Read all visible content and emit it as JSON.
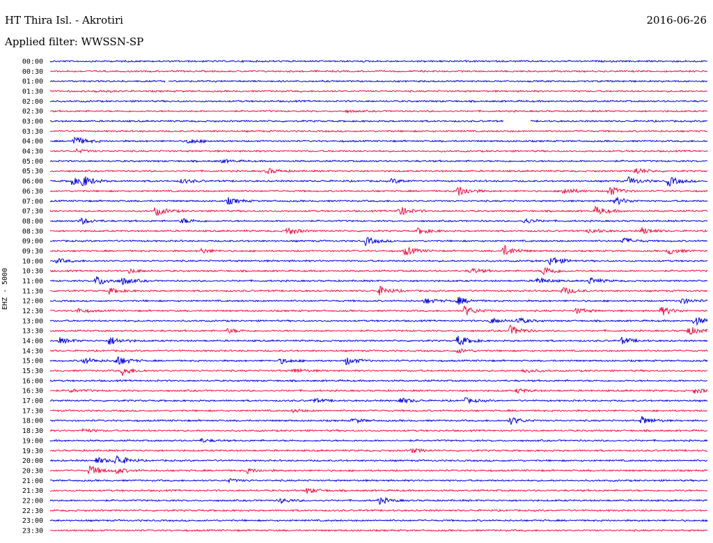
{
  "header": {
    "station": "HT Thira Isl. - Akrotiri",
    "date": "2016-06-26",
    "filter": "Applied filter: WWSSN-SP"
  },
  "chart_data": {
    "type": "helicorder",
    "title": "HT Thira Isl. - Akrotiri",
    "date": "2016-06-26",
    "filter": "WWSSN-SP",
    "ylabel": "EHZ - 5000",
    "row_interval_minutes": 30,
    "colors": [
      "#0000dd",
      "#ee1144"
    ],
    "rows": [
      {
        "time": "00:00",
        "events": []
      },
      {
        "time": "00:30",
        "events": []
      },
      {
        "time": "01:00",
        "events": [],
        "gap": [
          0.175,
          0.18
        ]
      },
      {
        "time": "01:30",
        "events": [
          [
            0.07,
            0.2
          ]
        ]
      },
      {
        "time": "02:00",
        "events": []
      },
      {
        "time": "02:30",
        "events": [
          [
            0.45,
            0.15
          ]
        ]
      },
      {
        "time": "03:00",
        "events": [],
        "gap": [
          0.69,
          0.73
        ]
      },
      {
        "time": "03:30",
        "events": []
      },
      {
        "time": "04:00",
        "events": [
          [
            0.035,
            0.9
          ],
          [
            0.21,
            0.5
          ]
        ]
      },
      {
        "time": "04:30",
        "events": [
          [
            0.04,
            0.3
          ]
        ]
      },
      {
        "time": "05:00",
        "events": [
          [
            0.26,
            0.3
          ]
        ]
      },
      {
        "time": "05:30",
        "events": [
          [
            0.33,
            0.5
          ],
          [
            0.89,
            0.6
          ]
        ]
      },
      {
        "time": "06:00",
        "events": [
          [
            0.03,
            0.8
          ],
          [
            0.047,
            1.0
          ],
          [
            0.2,
            0.4
          ],
          [
            0.52,
            0.4
          ],
          [
            0.88,
            0.7
          ],
          [
            0.94,
            0.9
          ]
        ]
      },
      {
        "time": "06:30",
        "events": [
          [
            0.62,
            1.0
          ],
          [
            0.78,
            0.7
          ],
          [
            0.85,
            0.9
          ]
        ]
      },
      {
        "time": "07:00",
        "events": [
          [
            0.27,
            0.6
          ],
          [
            0.86,
            0.7
          ]
        ]
      },
      {
        "time": "07:30",
        "events": [
          [
            0.16,
            0.8
          ],
          [
            0.53,
            0.9
          ],
          [
            0.83,
            0.8
          ]
        ]
      },
      {
        "time": "08:00",
        "events": [
          [
            0.045,
            0.6
          ],
          [
            0.2,
            0.5
          ],
          [
            0.72,
            0.5
          ]
        ]
      },
      {
        "time": "08:30",
        "events": [
          [
            0.36,
            0.7
          ],
          [
            0.56,
            0.6
          ],
          [
            0.82,
            0.5
          ],
          [
            0.9,
            0.6
          ]
        ]
      },
      {
        "time": "09:00",
        "events": [
          [
            0.48,
            0.7
          ],
          [
            0.87,
            0.6
          ]
        ]
      },
      {
        "time": "09:30",
        "events": [
          [
            0.23,
            0.4
          ],
          [
            0.54,
            0.8
          ],
          [
            0.69,
            1.0
          ],
          [
            0.94,
            0.6
          ]
        ]
      },
      {
        "time": "10:00",
        "events": [
          [
            0.01,
            0.4
          ],
          [
            0.76,
            0.9
          ]
        ]
      },
      {
        "time": "10:30",
        "events": [
          [
            0.12,
            0.4
          ],
          [
            0.64,
            0.5
          ],
          [
            0.75,
            0.9
          ]
        ]
      },
      {
        "time": "11:00",
        "events": [
          [
            0.07,
            0.9
          ],
          [
            0.11,
            0.6
          ],
          [
            0.74,
            0.6
          ],
          [
            0.82,
            0.6
          ]
        ]
      },
      {
        "time": "11:30",
        "events": [
          [
            0.09,
            0.5
          ],
          [
            0.5,
            0.8
          ],
          [
            0.78,
            0.7
          ]
        ]
      },
      {
        "time": "12:00",
        "events": [
          [
            0.57,
            0.5
          ],
          [
            0.62,
            0.7
          ],
          [
            0.96,
            0.5
          ]
        ]
      },
      {
        "time": "12:30",
        "events": [
          [
            0.04,
            0.4
          ],
          [
            0.63,
            0.9
          ],
          [
            0.8,
            0.5
          ],
          [
            0.93,
            0.8
          ]
        ]
      },
      {
        "time": "13:00",
        "events": [
          [
            0.67,
            0.5
          ],
          [
            0.71,
            0.6
          ],
          [
            0.98,
            0.8
          ]
        ]
      },
      {
        "time": "13:30",
        "events": [
          [
            0.27,
            0.4
          ],
          [
            0.7,
            0.9
          ],
          [
            0.97,
            0.8
          ]
        ]
      },
      {
        "time": "14:00",
        "events": [
          [
            0.015,
            0.5
          ],
          [
            0.09,
            0.8
          ],
          [
            0.62,
            1.0
          ],
          [
            0.87,
            0.6
          ]
        ]
      },
      {
        "time": "14:30",
        "events": [
          [
            0.62,
            0.4
          ]
        ]
      },
      {
        "time": "15:00",
        "events": [
          [
            0.05,
            0.6
          ],
          [
            0.1,
            1.0
          ],
          [
            0.35,
            0.5
          ],
          [
            0.45,
            0.7
          ]
        ]
      },
      {
        "time": "15:30",
        "events": [
          [
            0.11,
            0.8
          ],
          [
            0.37,
            0.4
          ],
          [
            0.72,
            0.4
          ]
        ]
      },
      {
        "time": "16:00",
        "events": []
      },
      {
        "time": "16:30",
        "events": [
          [
            0.03,
            0.3
          ],
          [
            0.71,
            0.4
          ],
          [
            0.98,
            0.5
          ]
        ]
      },
      {
        "time": "17:00",
        "events": [
          [
            0.4,
            0.4
          ],
          [
            0.53,
            0.6
          ],
          [
            0.63,
            0.5
          ]
        ]
      },
      {
        "time": "17:30",
        "events": [
          [
            0.37,
            0.3
          ]
        ]
      },
      {
        "time": "18:00",
        "events": [
          [
            0.46,
            0.4
          ],
          [
            0.7,
            0.7
          ],
          [
            0.9,
            0.7
          ]
        ]
      },
      {
        "time": "18:30",
        "events": [
          [
            0.05,
            0.3
          ]
        ]
      },
      {
        "time": "19:00",
        "events": [
          [
            0.23,
            0.3
          ]
        ]
      },
      {
        "time": "19:30",
        "events": [
          [
            0.55,
            0.4
          ]
        ]
      },
      {
        "time": "20:00",
        "events": [
          [
            0.07,
            0.6
          ],
          [
            0.1,
            1.0
          ]
        ]
      },
      {
        "time": "20:30",
        "events": [
          [
            0.06,
            0.9
          ],
          [
            0.1,
            0.5
          ],
          [
            0.3,
            0.4
          ]
        ]
      },
      {
        "time": "21:00",
        "events": [
          [
            0.27,
            0.3
          ]
        ]
      },
      {
        "time": "21:30",
        "events": [
          [
            0.39,
            0.5
          ]
        ]
      },
      {
        "time": "22:00",
        "events": [
          [
            0.35,
            0.4
          ],
          [
            0.5,
            0.6
          ]
        ]
      },
      {
        "time": "22:30",
        "events": []
      },
      {
        "time": "23:00",
        "events": []
      },
      {
        "time": "23:30",
        "events": []
      }
    ]
  }
}
